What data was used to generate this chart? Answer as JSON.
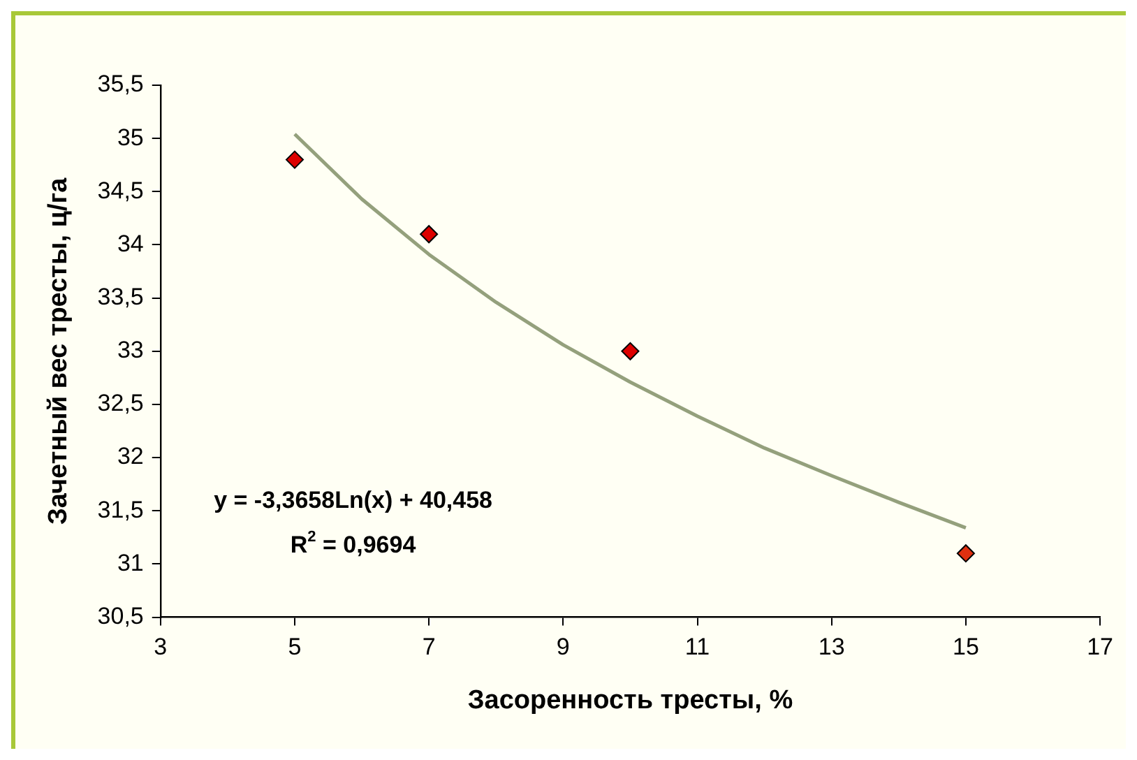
{
  "chart_data": {
    "type": "scatter",
    "xlabel": "Засоренность тресты, %",
    "ylabel": "Зачетный вес тресты, ц/га",
    "series": [
      {
        "type": "scatter",
        "x": [
          5,
          7,
          10,
          15
        ],
        "values": [
          34.8,
          34.1,
          33.0,
          31.1
        ],
        "colors": [
          "#dd0000",
          "#dd0000",
          "#dd0000",
          "#e03010"
        ],
        "marker": "diamond"
      },
      {
        "type": "line",
        "x": [
          5,
          6,
          7,
          8,
          9,
          10,
          11,
          12,
          13,
          14,
          15
        ],
        "values": [
          35.04,
          34.43,
          33.91,
          33.46,
          33.06,
          32.71,
          32.39,
          32.09,
          31.83,
          31.58,
          31.34
        ],
        "color": "#94a07c",
        "marker": "none",
        "line_style": "solid"
      }
    ],
    "xlim": [
      3,
      17
    ],
    "xticks": [
      3,
      5,
      7,
      9,
      11,
      13,
      15,
      17
    ],
    "ylim": [
      30.5,
      35.5
    ],
    "yticks": [
      {
        "value": 30.5,
        "label": "30,5"
      },
      31,
      {
        "value": 31.5,
        "label": "31,5"
      },
      32,
      {
        "value": 32.5,
        "label": "32,5"
      },
      33,
      {
        "value": 33.5,
        "label": "33,5"
      },
      34,
      {
        "value": 34.5,
        "label": "34,5"
      },
      35,
      {
        "value": 35.5,
        "label": "35,5"
      }
    ],
    "grid": false,
    "legend": false,
    "annotations": [
      "y = -3,3658Ln(x) + 40,458",
      "R$^{2}$ = 0,9694"
    ]
  }
}
